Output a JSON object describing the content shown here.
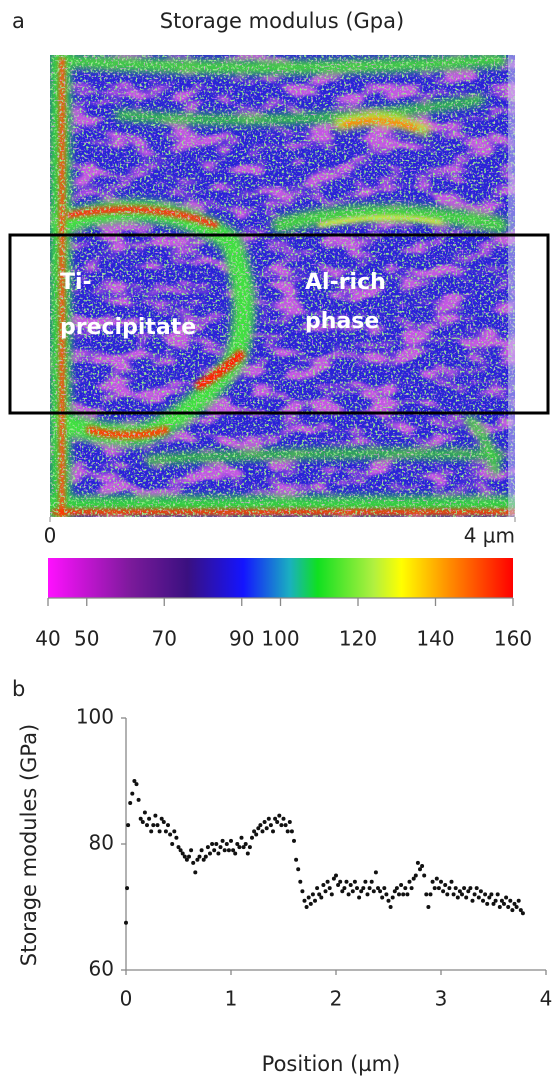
{
  "chart_data": [
    {
      "type": "heatmap",
      "panel_label": "a",
      "title": "Storage modulus (Gpa)",
      "annotations": [
        "Ti-",
        "precipitate",
        "Al-rich",
        "phase"
      ],
      "xlim": [
        0,
        4
      ],
      "xticks": [
        0,
        {
          "value": 4,
          "label": "4 µm"
        }
      ],
      "colorbar": {
        "lim": [
          40,
          160
        ],
        "ticks": [
          40,
          50,
          70,
          90,
          100,
          120,
          140,
          160
        ]
      },
      "grid": false
    },
    {
      "type": "scatter",
      "panel_label": "b",
      "x_label": "Position (µm)",
      "y_label": "Storage modules (GPa)",
      "color": "#111111",
      "grid": false,
      "xlim": [
        0,
        4
      ],
      "xticks": [
        0,
        1,
        2,
        3,
        4
      ],
      "ylim": [
        60,
        100
      ],
      "yticks": [
        60,
        80,
        100
      ],
      "x": [
        0,
        0.01,
        0.02,
        0.04,
        0.06,
        0.08,
        0.1,
        0.12,
        0.14,
        0.16,
        0.18,
        0.2,
        0.22,
        0.24,
        0.26,
        0.28,
        0.3,
        0.32,
        0.34,
        0.36,
        0.38,
        0.4,
        0.42,
        0.44,
        0.46,
        0.48,
        0.5,
        0.52,
        0.54,
        0.56,
        0.58,
        0.6,
        0.62,
        0.64,
        0.66,
        0.68,
        0.7,
        0.72,
        0.74,
        0.76,
        0.78,
        0.8,
        0.82,
        0.84,
        0.86,
        0.88,
        0.9,
        0.92,
        0.94,
        0.96,
        0.98,
        1.0,
        1.02,
        1.04,
        1.06,
        1.08,
        1.1,
        1.12,
        1.14,
        1.16,
        1.18,
        1.2,
        1.22,
        1.24,
        1.26,
        1.28,
        1.3,
        1.32,
        1.34,
        1.36,
        1.38,
        1.4,
        1.42,
        1.44,
        1.46,
        1.48,
        1.5,
        1.52,
        1.54,
        1.56,
        1.58,
        1.6,
        1.62,
        1.64,
        1.66,
        1.68,
        1.7,
        1.72,
        1.74,
        1.76,
        1.78,
        1.8,
        1.82,
        1.84,
        1.86,
        1.88,
        1.9,
        1.92,
        1.94,
        1.96,
        1.98,
        2.0,
        2.02,
        2.04,
        2.06,
        2.08,
        2.1,
        2.12,
        2.14,
        2.16,
        2.18,
        2.2,
        2.22,
        2.24,
        2.26,
        2.28,
        2.3,
        2.32,
        2.34,
        2.36,
        2.38,
        2.4,
        2.42,
        2.44,
        2.46,
        2.48,
        2.5,
        2.52,
        2.54,
        2.56,
        2.58,
        2.6,
        2.62,
        2.64,
        2.66,
        2.68,
        2.7,
        2.72,
        2.74,
        2.76,
        2.78,
        2.8,
        2.82,
        2.84,
        2.86,
        2.88,
        2.9,
        2.92,
        2.94,
        2.96,
        2.98,
        3.0,
        3.02,
        3.04,
        3.06,
        3.08,
        3.1,
        3.12,
        3.14,
        3.16,
        3.18,
        3.2,
        3.22,
        3.24,
        3.26,
        3.28,
        3.3,
        3.32,
        3.34,
        3.36,
        3.38,
        3.4,
        3.42,
        3.44,
        3.46,
        3.48,
        3.5,
        3.52,
        3.54,
        3.56,
        3.58,
        3.6,
        3.62,
        3.64,
        3.66,
        3.68,
        3.7,
        3.72,
        3.74,
        3.76,
        3.78
      ],
      "values": [
        67.5,
        73,
        83,
        86.5,
        88,
        90,
        89.5,
        87,
        84,
        83.5,
        85,
        83,
        84,
        82,
        83,
        84.5,
        83,
        82,
        84,
        83.5,
        82,
        83,
        81.5,
        80,
        82,
        81,
        79.5,
        79,
        78.5,
        78,
        77.5,
        78,
        79,
        77,
        75.5,
        77.5,
        78,
        79,
        77.5,
        78,
        79.5,
        78.5,
        80,
        79,
        80,
        78.5,
        79.5,
        80.5,
        79,
        80,
        79,
        80.5,
        79,
        78.5,
        80,
        79.5,
        81,
        79.5,
        80,
        78.5,
        79.5,
        81,
        82,
        81.5,
        82.5,
        83,
        82,
        83.5,
        82.5,
        84,
        83,
        82,
        84,
        83.5,
        84.5,
        83,
        84,
        83,
        82,
        83.5,
        82,
        80.5,
        77.5,
        76,
        74,
        72.5,
        71,
        70,
        71.5,
        70.5,
        72,
        71,
        73,
        72,
        71.5,
        73.5,
        72.5,
        74,
        73,
        72,
        74.5,
        75,
        73.5,
        74,
        72.5,
        73,
        74,
        72,
        73.5,
        72.5,
        74,
        73,
        71.5,
        72.5,
        73,
        74,
        72,
        73,
        74,
        72.5,
        75.5,
        73,
        72.5,
        71.5,
        73,
        72,
        71,
        70,
        71.5,
        72.5,
        73,
        72,
        73.5,
        72,
        73,
        72,
        74,
        73,
        74.5,
        75,
        77,
        76,
        76.5,
        75,
        72,
        70,
        72,
        74,
        73,
        74.5,
        73,
        74,
        72.5,
        73.5,
        72,
        73,
        74,
        72,
        73,
        71.5,
        72.5,
        72,
        73,
        71.5,
        72.5,
        73,
        71,
        72,
        73,
        71.5,
        72.5,
        71,
        72,
        70.5,
        71.5,
        72,
        70.5,
        71,
        72,
        70,
        71,
        70.5,
        71.5,
        70,
        71,
        69.5,
        70.5,
        70,
        71,
        69.5,
        69
      ]
    }
  ]
}
